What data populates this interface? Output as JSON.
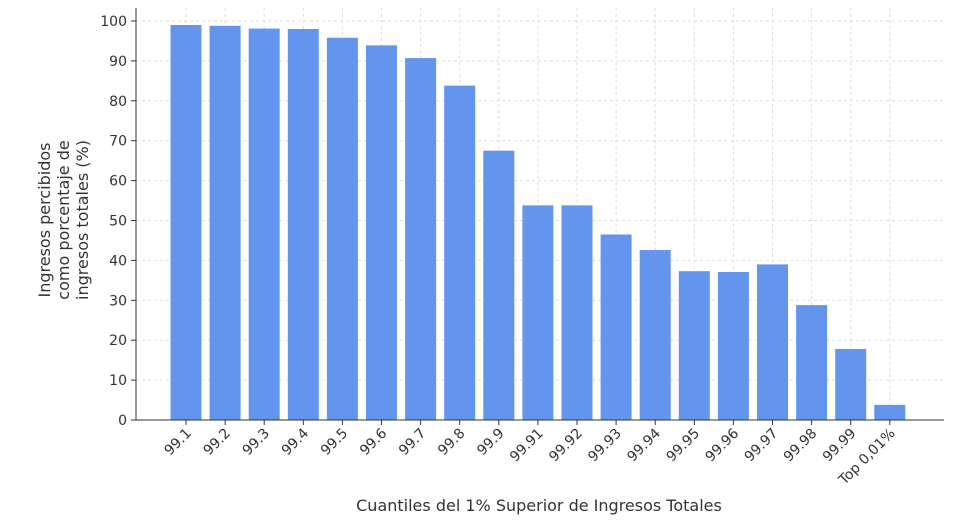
{
  "chart_data": {
    "type": "bar",
    "categories": [
      "99.1",
      "99.2",
      "99.3",
      "99.4",
      "99.5",
      "99.6",
      "99.7",
      "99.8",
      "99.9",
      "99.91",
      "99.92",
      "99.93",
      "99.94",
      "99.95",
      "99.96",
      "99.97",
      "99.98",
      "99.99",
      "Top 0,01%"
    ],
    "values": [
      99,
      98.8,
      98.1,
      98,
      95.8,
      93.9,
      90.7,
      83.8,
      67.5,
      53.8,
      53.8,
      46.5,
      42.6,
      37.3,
      37.1,
      39,
      28.8,
      17.8,
      3.8
    ],
    "title": "",
    "xlabel": "Cuantiles del 1% Superior de Ingresos Totales",
    "ylabel_lines": [
      "Ingresos percibidos",
      "como porcentaje de",
      "ingresos totales (%)"
    ],
    "ylim": [
      0,
      100
    ],
    "yticks": [
      0,
      10,
      20,
      30,
      40,
      50,
      60,
      70,
      80,
      90,
      100
    ],
    "grid": true,
    "colors": {
      "bar": "#6495ED",
      "grid": "#dddddd",
      "axis": "#333333"
    }
  }
}
